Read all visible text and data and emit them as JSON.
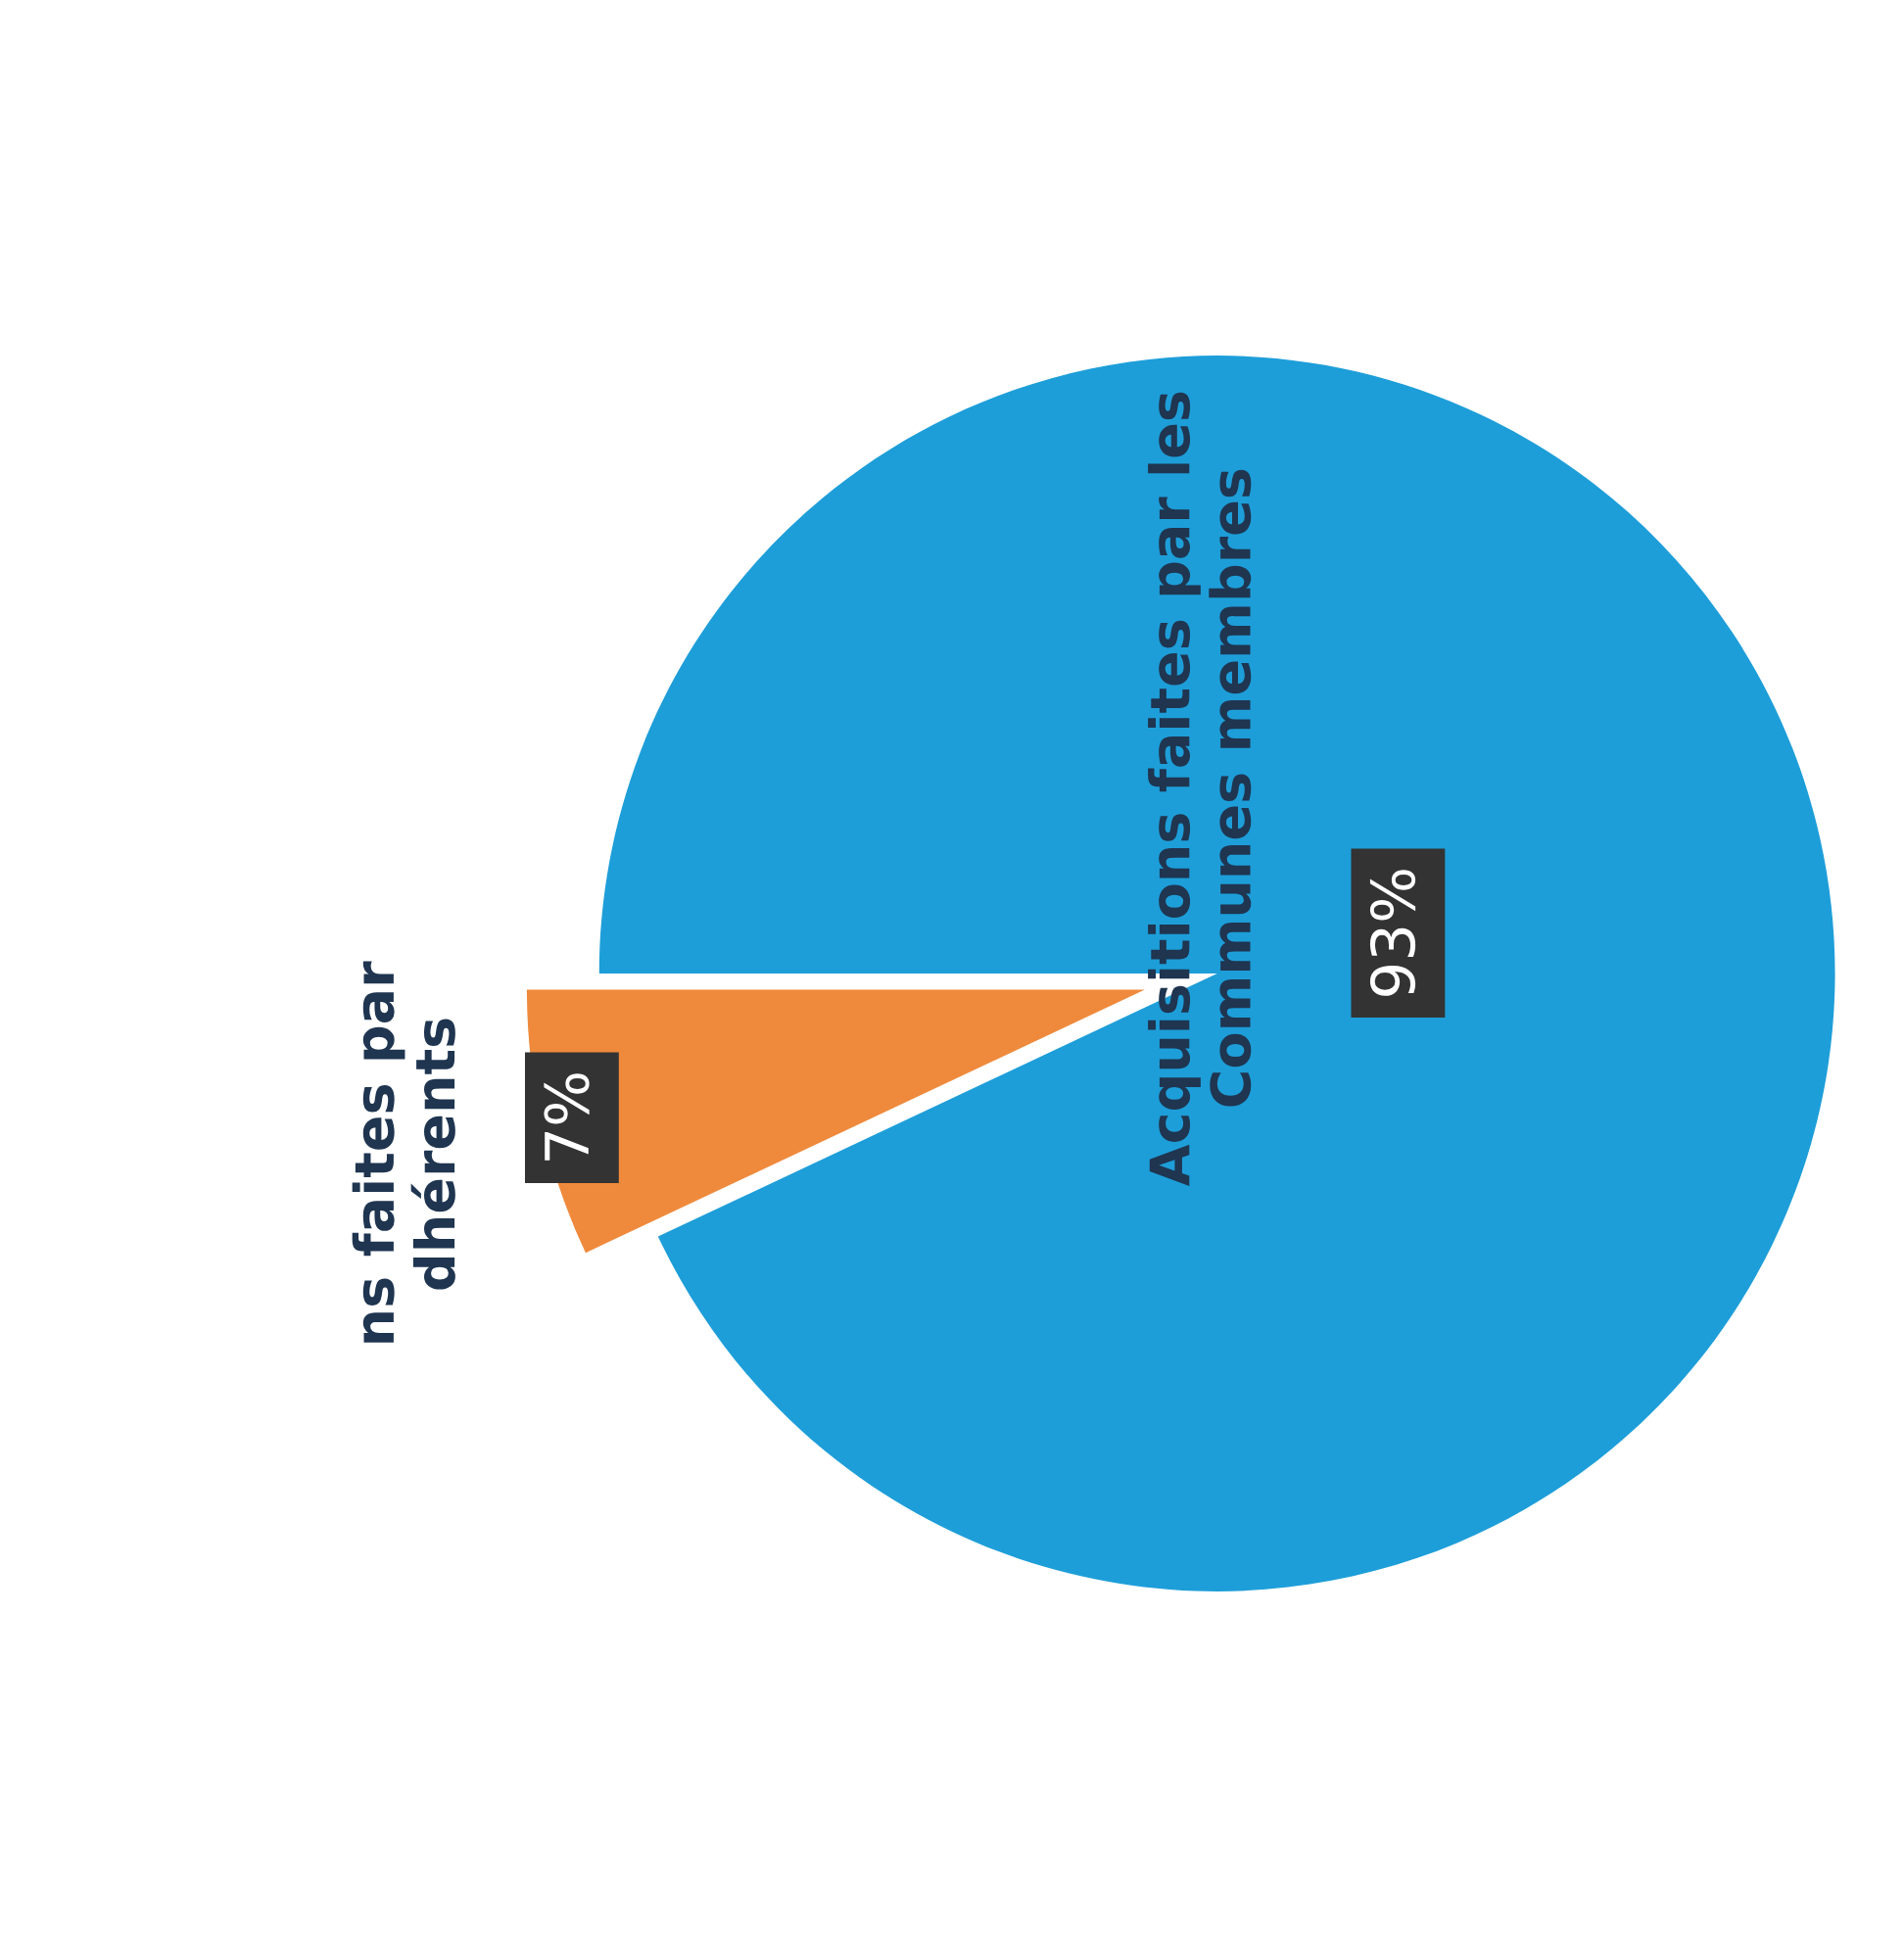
{
  "chart_data": {
    "type": "pie",
    "categories": [
      "ns faites par\ndhérents",
      "Acquisitions faites par les\nCommunes membres"
    ],
    "values": [
      7,
      93
    ],
    "colors": [
      "#ef8a3c",
      "#1d9ed9"
    ],
    "value_labels": [
      "7%",
      "93%"
    ]
  }
}
